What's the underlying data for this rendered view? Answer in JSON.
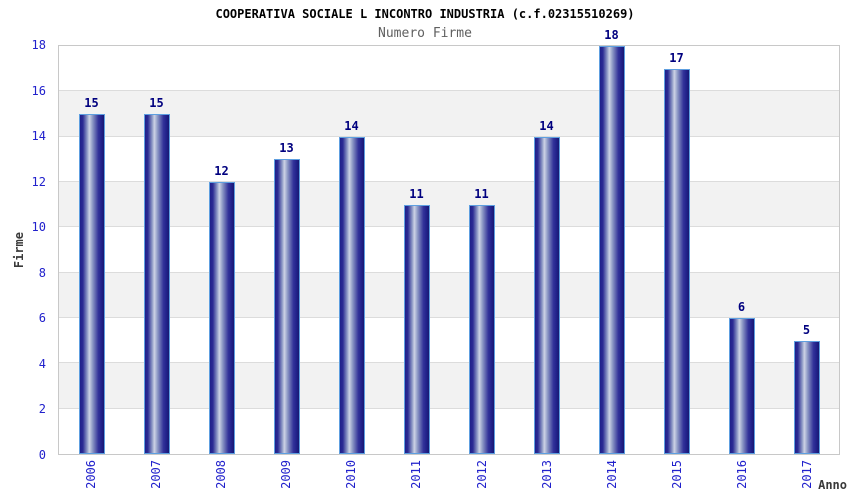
{
  "header": {
    "title": "COOPERATIVA SOCIALE L INCONTRO INDUSTRIA (c.f.02315510269)",
    "subtitle": "Numero Firme"
  },
  "chart_data": {
    "type": "bar",
    "title": "COOPERATIVA SOCIALE L INCONTRO INDUSTRIA (c.f.02315510269)",
    "subtitle": "Numero Firme",
    "categories": [
      "2006",
      "2007",
      "2008",
      "2009",
      "2010",
      "2011",
      "2012",
      "2013",
      "2014",
      "2015",
      "2016",
      "2017"
    ],
    "values": [
      15,
      15,
      12,
      13,
      14,
      11,
      11,
      14,
      18,
      17,
      6,
      5
    ],
    "xlabel": "Anno",
    "ylabel": "Firme",
    "ylim": [
      0,
      18
    ],
    "ytick_step": 2,
    "yticks": [
      0,
      2,
      4,
      6,
      8,
      10,
      12,
      14,
      16,
      18
    ],
    "legend": "none",
    "grid": "horizontal-gridlines-with-alternating-bands",
    "bar_value_labels": true,
    "x_tick_rotation_deg": 90
  },
  "colors": {
    "title": "#000000",
    "subtitle": "#606060",
    "axis_title": "#3a3a3a",
    "tick_label": "#2121cc",
    "value_label": "#00007f",
    "band_light": "#ffffff",
    "band_dark": "#f2f2f2",
    "gridline": "#dcdcdc",
    "plot_border": "#c8c8c8",
    "bar_dark": "#20208a",
    "bar_mid": "#8e9ac6",
    "bar_highlight": "#cdd3e5",
    "bar_border": "#5e9fe0"
  }
}
